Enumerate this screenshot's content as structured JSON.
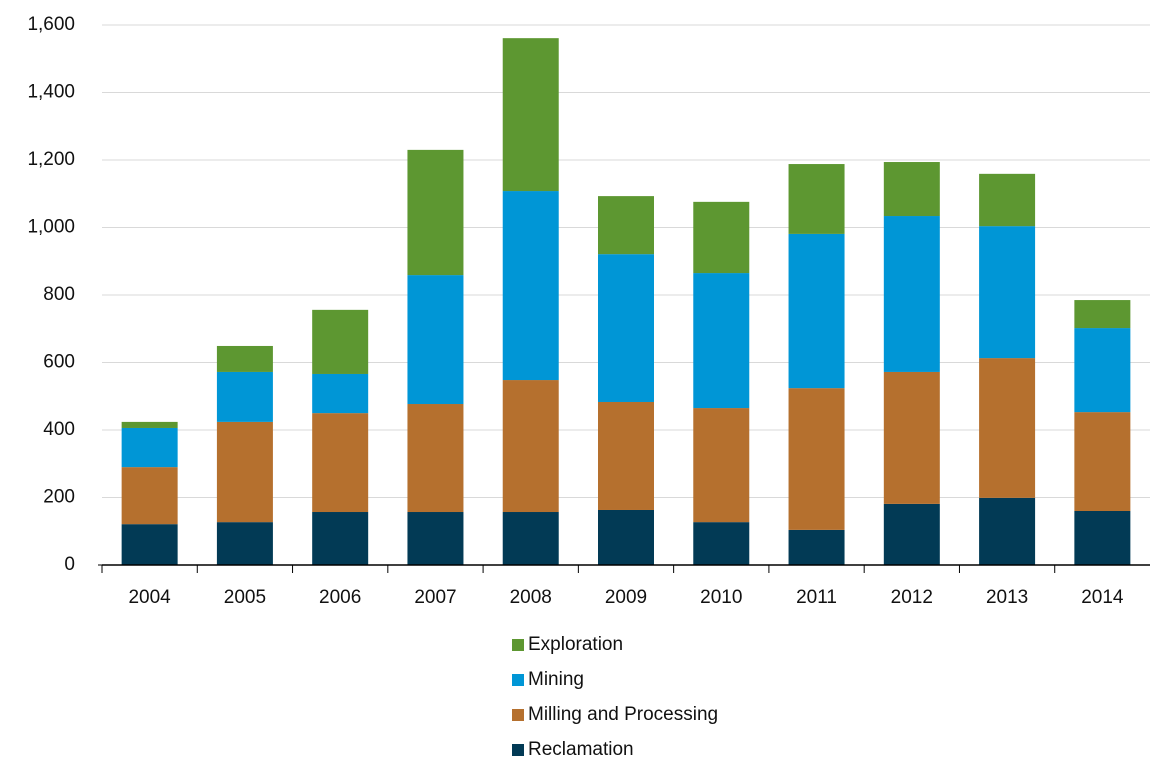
{
  "chart_data": {
    "type": "stacked_bar",
    "categories": [
      "2004",
      "2005",
      "2006",
      "2007",
      "2008",
      "2009",
      "2010",
      "2011",
      "2012",
      "2013",
      "2014"
    ],
    "series": [
      {
        "name": "Reclamation",
        "color": "#023a55",
        "values": [
          121,
          127,
          157,
          157,
          157,
          163,
          127,
          104,
          181,
          199,
          160
        ]
      },
      {
        "name": "Milling and Processing",
        "color": "#b5702e",
        "values": [
          169,
          297,
          293,
          320,
          391,
          320,
          338,
          420,
          391,
          414,
          293
        ]
      },
      {
        "name": "Mining",
        "color": "#0096d6",
        "values": [
          116,
          148,
          116,
          382,
          560,
          438,
          400,
          457,
          462,
          391,
          249
        ]
      },
      {
        "name": "Exploration",
        "color": "#5d9731",
        "values": [
          18,
          77,
          190,
          371,
          453,
          172,
          211,
          207,
          160,
          155,
          83
        ]
      }
    ],
    "ylim": [
      0,
      1600
    ],
    "yticks": [
      0,
      200,
      400,
      600,
      800,
      {
        "value": 1000,
        "label": "1,000"
      },
      {
        "value": 1200,
        "label": "1,200"
      },
      {
        "value": 1400,
        "label": "1,400"
      },
      {
        "value": 1600,
        "label": "1,600"
      }
    ],
    "grid": true
  }
}
